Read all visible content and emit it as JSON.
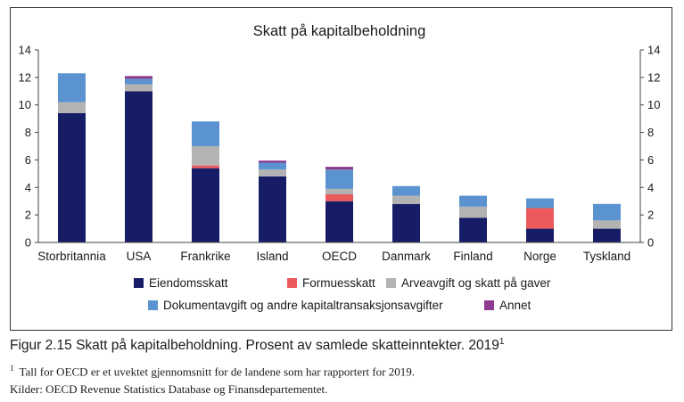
{
  "chart_data": {
    "type": "bar",
    "stacked": true,
    "title": "Skatt på kapitalbeholdning",
    "xlabel": "",
    "ylabel": "",
    "ylim": [
      0,
      14
    ],
    "yticks": [
      0,
      2,
      4,
      6,
      8,
      10,
      12,
      14
    ],
    "y_axis_both_sides": true,
    "grid": false,
    "legend_position": "bottom",
    "categories": [
      "Storbritannia",
      "USA",
      "Frankrike",
      "Island",
      "OECD",
      "Danmark",
      "Finland",
      "Norge",
      "Tyskland"
    ],
    "series": [
      {
        "name": "Eiendomsskatt",
        "color": "#171c66",
        "values": [
          9.4,
          11.0,
          5.4,
          4.8,
          3.0,
          2.8,
          1.8,
          1.0,
          1.0
        ]
      },
      {
        "name": "Formuesskatt",
        "color": "#ec5a5e",
        "values": [
          0.0,
          0.0,
          0.2,
          0.0,
          0.5,
          0.0,
          0.0,
          1.5,
          0.0
        ]
      },
      {
        "name": "Arveavgift og skatt på gaver",
        "color": "#b3b3b3",
        "values": [
          0.8,
          0.5,
          1.4,
          0.5,
          0.4,
          0.6,
          0.8,
          0.0,
          0.6
        ]
      },
      {
        "name": "Dokumentavgift og andre kapitaltransaksjonsavgifter",
        "color": "#5b93d0",
        "values": [
          2.1,
          0.4,
          1.8,
          0.5,
          1.4,
          0.7,
          0.8,
          0.7,
          1.2
        ]
      },
      {
        "name": "Annet",
        "color": "#8d3a8f",
        "values": [
          0.0,
          0.2,
          0.0,
          0.15,
          0.2,
          0.0,
          0.0,
          0.0,
          0.0
        ]
      }
    ]
  },
  "caption": {
    "prefix": "Figur 2.15  Skatt på kapitalbeholdning. Prosent av samlede skatteinntekter. 2019",
    "sup": "1"
  },
  "footnote": {
    "marker": "1",
    "text": "Tall for OECD er et uvektet gjennomsnitt for de landene som har rapportert for 2019."
  },
  "sources": "Kilder: OECD Revenue Statistics Database og Finansdepartementet."
}
